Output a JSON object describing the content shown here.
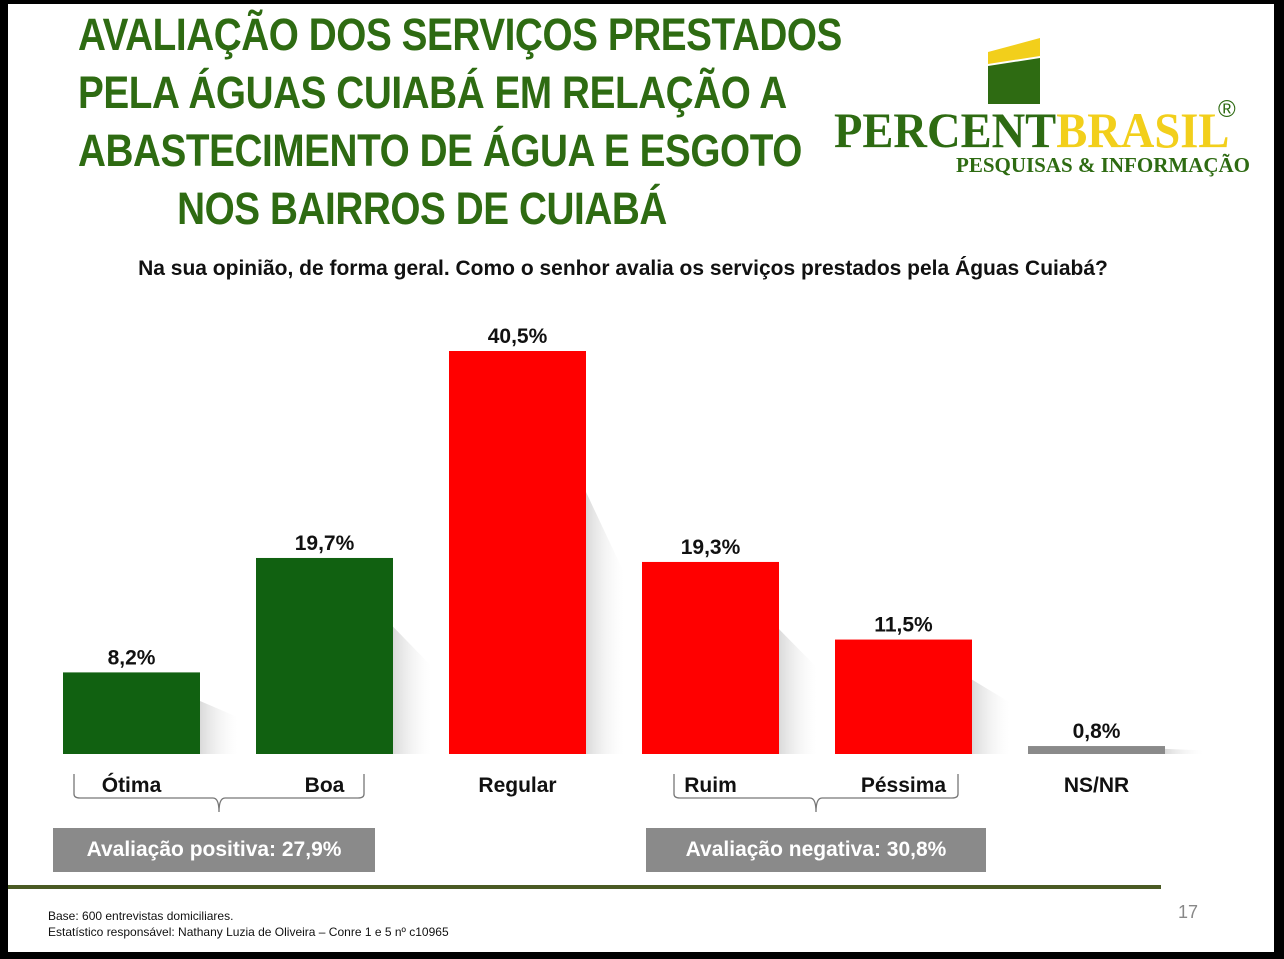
{
  "title_lines": [
    "AVALIAÇÃO DOS SERVIÇOS PRESTADOS",
    "PELA ÁGUAS CUIABÁ EM RELAÇÃO A",
    "ABASTECIMENTO DE ÁGUA E ESGOTO",
    "NOS BAIRROS DE CUIABÁ"
  ],
  "logo": {
    "word1": "PERCENT",
    "word2": "BRASIL",
    "registered": "®",
    "subtitle": "PESQUISAS & INFORMAÇÃO",
    "green": "#2e6b12",
    "yellow": "#f2cf1b"
  },
  "question": "Na sua opinião, de forma geral. Como o senhor avalia os serviços prestados pela Águas Cuiabá?",
  "chart_data": {
    "type": "bar",
    "title": "Na sua opinião, de forma geral. Como o senhor avalia os serviços prestados pela Águas Cuiabá?",
    "categories": [
      "Ótima",
      "Boa",
      "Regular",
      "Ruim",
      "Péssima",
      "NS/NR"
    ],
    "values": [
      8.2,
      19.7,
      40.5,
      19.3,
      11.5,
      0.8
    ],
    "value_labels": [
      "8,2%",
      "19,7%",
      "40,5%",
      "19,3%",
      "11,5%",
      "0,8%"
    ],
    "colors": [
      "#116111",
      "#116111",
      "#ff0000",
      "#ff0000",
      "#ff0000",
      "#8a8a8a"
    ],
    "ylim": [
      0,
      40.5
    ],
    "grid": false,
    "xlabel": "",
    "ylabel": ""
  },
  "summaries": {
    "positive": "Avaliação positiva: 27,9%",
    "negative": "Avaliação negativa: 30,8%"
  },
  "footer": {
    "base": "Base: 600 entrevistas domiciliares.",
    "statistician": "Estatístico responsável: Nathany Luzia de Oliveira – Conre 1 e 5 nº c10965"
  },
  "page_number": "17"
}
